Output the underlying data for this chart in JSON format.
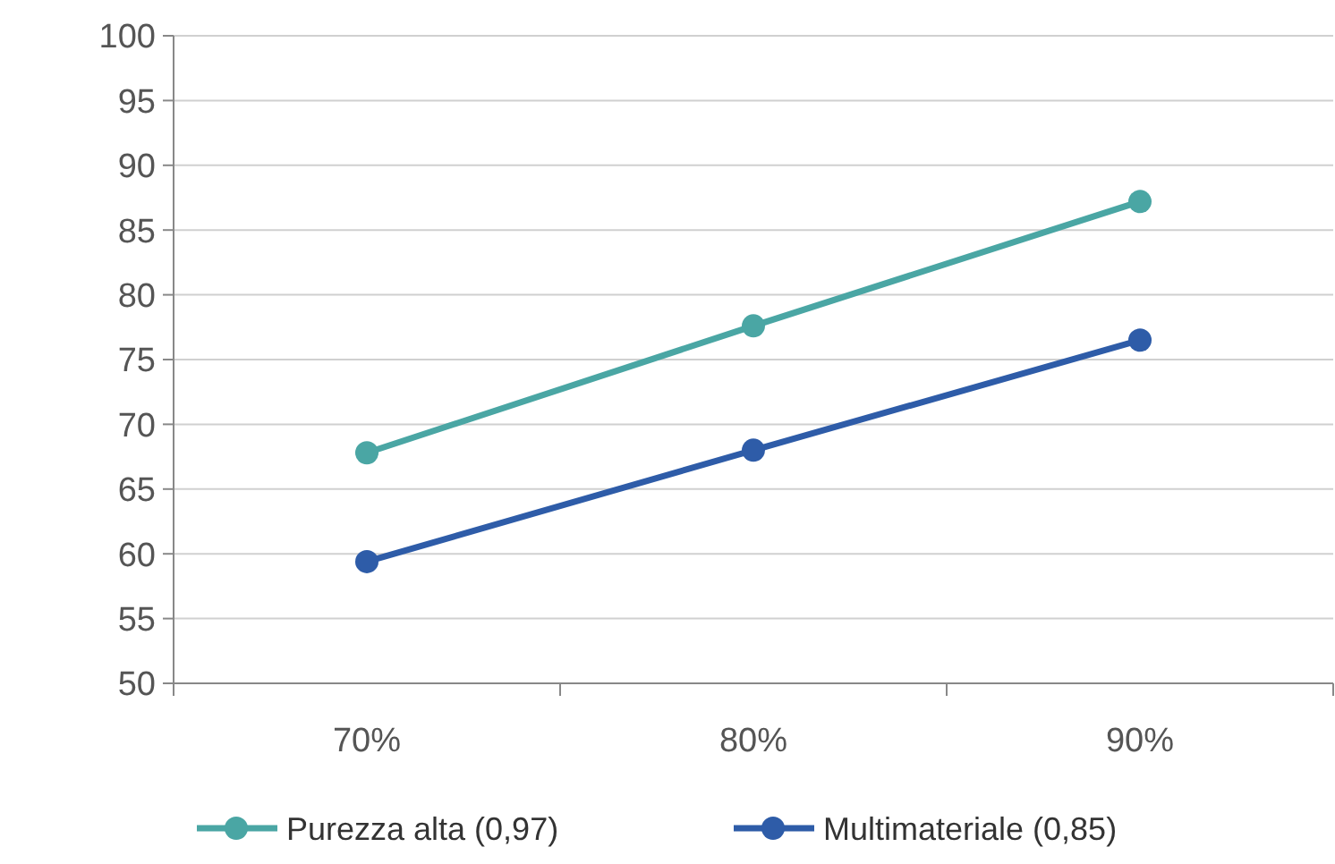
{
  "chart_data": {
    "type": "line",
    "categories": [
      "70%",
      "80%",
      "90%"
    ],
    "series": [
      {
        "name": "Purezza alta (0,97)",
        "color": "#4aa6a4",
        "values": [
          67.8,
          77.6,
          87.2
        ]
      },
      {
        "name": "Multimateriale (0,85)",
        "color": "#2e5ca8",
        "values": [
          59.4,
          68,
          76.5
        ]
      }
    ],
    "ylim": [
      50,
      100
    ],
    "yticks": [
      50,
      55,
      60,
      65,
      70,
      75,
      80,
      85,
      90,
      95,
      100
    ],
    "grid": "y",
    "legend": "bottom",
    "marker": "circle",
    "line_style": "solid"
  }
}
